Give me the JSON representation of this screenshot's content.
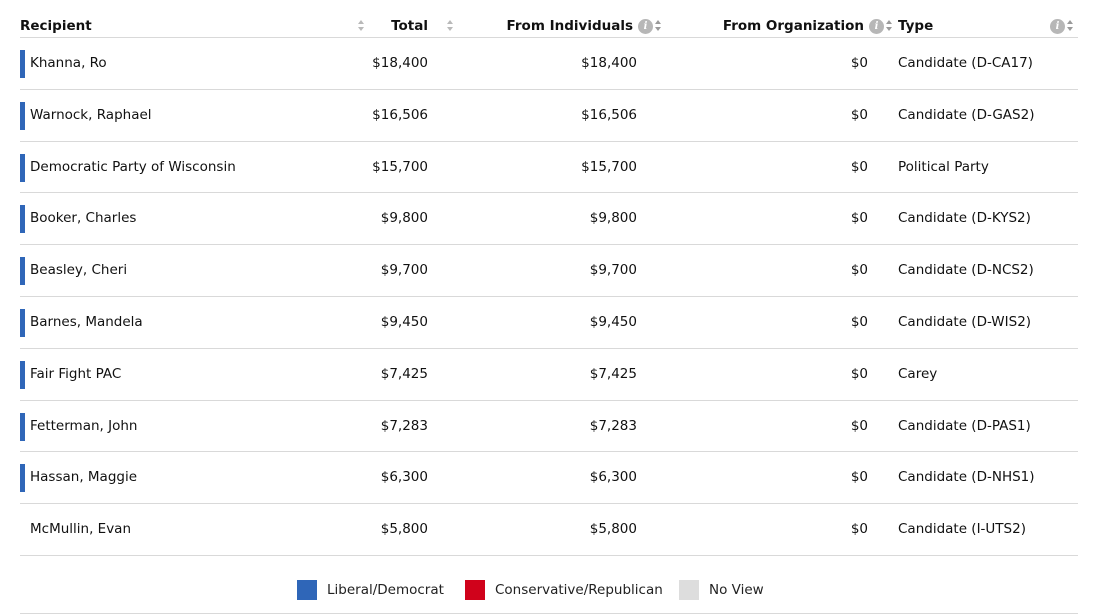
{
  "columns": {
    "recipient": "Recipient",
    "total": "Total",
    "from_individuals": "From Individuals",
    "from_organization": "From Organization",
    "type": "Type",
    "info_glyph": "i"
  },
  "rows": [
    {
      "recipient": "Khanna, Ro",
      "total": "$18,400",
      "from_individuals": "$18,400",
      "from_organization": "$0",
      "type": "Candidate (D-CA17)",
      "party": "liberal"
    },
    {
      "recipient": "Warnock, Raphael",
      "total": "$16,506",
      "from_individuals": "$16,506",
      "from_organization": "$0",
      "type": "Candidate (D-GAS2)",
      "party": "liberal"
    },
    {
      "recipient": "Democratic Party of Wisconsin",
      "total": "$15,700",
      "from_individuals": "$15,700",
      "from_organization": "$0",
      "type": "Political Party",
      "party": "liberal"
    },
    {
      "recipient": "Booker, Charles",
      "total": "$9,800",
      "from_individuals": "$9,800",
      "from_organization": "$0",
      "type": "Candidate (D-KYS2)",
      "party": "liberal"
    },
    {
      "recipient": "Beasley, Cheri",
      "total": "$9,700",
      "from_individuals": "$9,700",
      "from_organization": "$0",
      "type": "Candidate (D-NCS2)",
      "party": "liberal"
    },
    {
      "recipient": "Barnes, Mandela",
      "total": "$9,450",
      "from_individuals": "$9,450",
      "from_organization": "$0",
      "type": "Candidate (D-WIS2)",
      "party": "liberal"
    },
    {
      "recipient": "Fair Fight PAC",
      "total": "$7,425",
      "from_individuals": "$7,425",
      "from_organization": "$0",
      "type": "Carey",
      "party": "liberal"
    },
    {
      "recipient": "Fetterman, John",
      "total": "$7,283",
      "from_individuals": "$7,283",
      "from_organization": "$0",
      "type": "Candidate (D-PAS1)",
      "party": "liberal"
    },
    {
      "recipient": "Hassan, Maggie",
      "total": "$6,300",
      "from_individuals": "$6,300",
      "from_organization": "$0",
      "type": "Candidate (D-NHS1)",
      "party": "liberal"
    },
    {
      "recipient": "McMullin, Evan",
      "total": "$5,800",
      "from_individuals": "$5,800",
      "from_organization": "$0",
      "type": "Candidate (I-UTS2)",
      "party": "none"
    }
  ],
  "legend": [
    {
      "label": "Liberal/Democrat",
      "color": "#2f66b8"
    },
    {
      "label": "Conservative/Republican",
      "color": "#d0021b"
    },
    {
      "label": "No View",
      "color": "#dddddd"
    }
  ],
  "colors": {
    "liberal": "#2f66b8",
    "conservative": "#d0021b",
    "none": "transparent"
  }
}
